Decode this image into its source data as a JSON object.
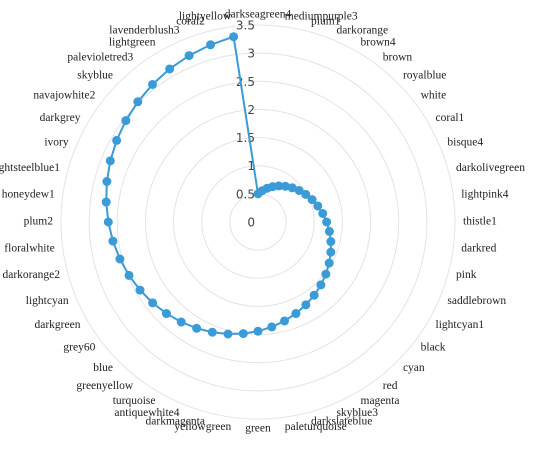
{
  "chart_data": {
    "type": "radar",
    "categories": [
      "darkseagreen4",
      "mediumpurple3",
      "plum1",
      "darkorange",
      "brown4",
      "brown",
      "royalblue",
      "white",
      "coral1",
      "bisque4",
      "darkolivegreen",
      "lightpink4",
      "thistle1",
      "darkred",
      "pink",
      "saddlebrown",
      "lightcyan1",
      "black",
      "cyan",
      "red",
      "magenta",
      "skyblue3",
      "darkslateblue",
      "paleturquoise",
      "green",
      "yellowgreen",
      "darkmagenta",
      "antiquewhite4",
      "turquoise",
      "greenyellow",
      "blue",
      "grey60",
      "darkgreen",
      "lightcyan",
      "darkorange2",
      "floralwhite",
      "plum2",
      "honeydew1",
      "lightsteelblue1",
      "ivory",
      "darkgrey",
      "navajowhite2",
      "skyblue",
      "palevioletred3",
      "lightgreen",
      "lavenderblush3",
      "coral2",
      "lightyellow"
    ],
    "values": [
      0.5,
      0.56,
      0.62,
      0.68,
      0.74,
      0.8,
      0.86,
      0.92,
      0.98,
      1.04,
      1.1,
      1.16,
      1.22,
      1.28,
      1.34,
      1.4,
      1.46,
      1.52,
      1.58,
      1.64,
      1.7,
      1.76,
      1.82,
      1.88,
      1.94,
      2.0,
      2.06,
      2.12,
      2.18,
      2.24,
      2.3,
      2.36,
      2.42,
      2.48,
      2.54,
      2.6,
      2.66,
      2.72,
      2.78,
      2.84,
      2.9,
      2.96,
      3.02,
      3.08,
      3.14,
      3.2,
      3.26,
      3.32
    ],
    "color": "#3b9bd6",
    "rlim": [
      0,
      3.5
    ],
    "rticks": [
      0,
      0.5,
      1,
      1.5,
      2,
      2.5,
      3,
      3.5
    ],
    "grid": true
  }
}
